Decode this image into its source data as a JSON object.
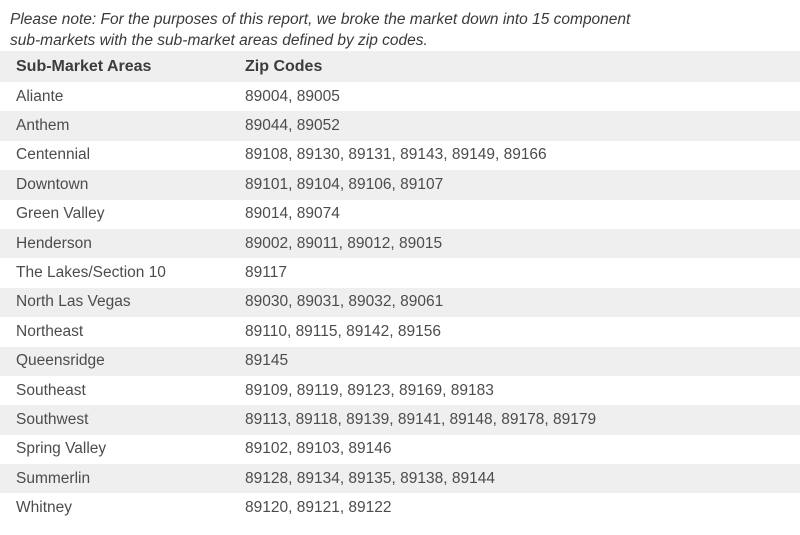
{
  "note": {
    "line1": "Please note: For the purposes of this report, we broke the market down into 15 component",
    "line2": "sub-markets with the sub-market areas defined by zip codes."
  },
  "table": {
    "headers": {
      "area": "Sub-Market Areas",
      "zips": "Zip Codes"
    },
    "rows": [
      {
        "area": "Aliante",
        "zips": "89004, 89005"
      },
      {
        "area": "Anthem",
        "zips": "89044, 89052"
      },
      {
        "area": "Centennial",
        "zips": "89108, 89130, 89131, 89143, 89149, 89166"
      },
      {
        "area": "Downtown",
        "zips": "89101, 89104, 89106, 89107"
      },
      {
        "area": "Green Valley",
        "zips": "89014, 89074"
      },
      {
        "area": "Henderson",
        "zips": "89002, 89011, 89012, 89015"
      },
      {
        "area": "The Lakes/Section 10",
        "zips": "89117"
      },
      {
        "area": "North Las Vegas",
        "zips": "89030, 89031, 89032, 89061"
      },
      {
        "area": "Northeast",
        "zips": "89110, 89115, 89142, 89156"
      },
      {
        "area": "Queensridge",
        "zips": "89145"
      },
      {
        "area": "Southeast",
        "zips": "89109, 89119, 89123, 89169, 89183"
      },
      {
        "area": "Southwest",
        "zips": "89113, 89118, 89139, 89141, 89148, 89178, 89179"
      },
      {
        "area": "Spring Valley",
        "zips": "89102, 89103, 89146"
      },
      {
        "area": "Summerlin",
        "zips": "89128, 89134, 89135, 89138, 89144"
      },
      {
        "area": "Whitney",
        "zips": "89120, 89121, 89122"
      }
    ]
  },
  "colors": {
    "stripe_bg": "#efefef",
    "header_text": "#3c3c3c",
    "body_text": "#4c4c4c",
    "note_text": "#3a3a3a",
    "page_bg": "#ffffff"
  }
}
